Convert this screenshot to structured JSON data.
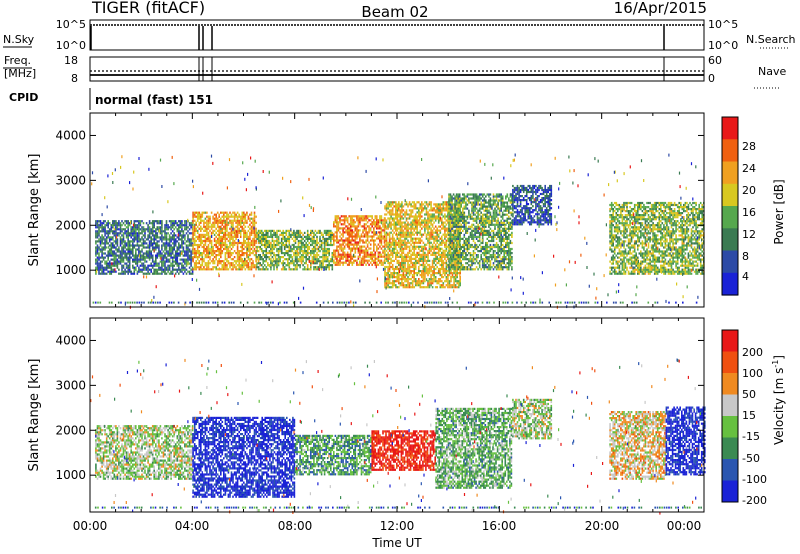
{
  "header": {
    "radar": "TIGER (fitACF)",
    "beam": "Beam 02",
    "date": "16/Apr/2015"
  },
  "noise_panel": {
    "left_label": "N.Sky",
    "right_label": "N.Search",
    "left_ticks": [
      "10^5",
      "10^0"
    ],
    "right_ticks": [
      "10^5",
      "10^0"
    ]
  },
  "freq_panel": {
    "left_label_line1": "Freq.",
    "left_label_line2": "[MHz]",
    "left_ticks": [
      "18",
      "8"
    ],
    "right_label": "Nave",
    "right_ticks": [
      "60",
      "0"
    ]
  },
  "cpid": {
    "label": "CPID",
    "value": "normal (fast) 151"
  },
  "power_panel": {
    "ylabel": "Slant Range [km]",
    "yticks": [
      "4000",
      "3000",
      "2000",
      "1000"
    ],
    "colorbar_label": "Power [dB]",
    "colorbar_ticks": [
      "28",
      "24",
      "20",
      "16",
      "12",
      "8",
      "4"
    ],
    "colors": [
      "#1a22d6",
      "#2c4aa6",
      "#3a7a52",
      "#56a84e",
      "#d8c820",
      "#f0a020",
      "#f06010",
      "#e81818"
    ]
  },
  "velocity_panel": {
    "ylabel": "Slant Range [km]",
    "yticks": [
      "4000",
      "3000",
      "2000",
      "1000"
    ],
    "colorbar_label": "Velocity [m s",
    "colorbar_sup": "-1",
    "colorbar_label_end": "]",
    "colorbar_ticks": [
      "200",
      "100",
      "50",
      "15",
      "-15",
      "-50",
      "-100",
      "-200"
    ],
    "colors": [
      "#1a22d6",
      "#2a56b0",
      "#3a8a52",
      "#66c040",
      "#c8c8c8",
      "#f08a20",
      "#f05010",
      "#e81818"
    ]
  },
  "xaxis": {
    "ticks": [
      "00:00",
      "04:00",
      "08:00",
      "12:00",
      "16:00",
      "20:00",
      "00:00"
    ],
    "label": "Time UT"
  },
  "chart_data": [
    {
      "type": "heatmap",
      "name": "Power",
      "x_range_hours": [
        0,
        24
      ],
      "y_range_km": [
        180,
        4500
      ],
      "color_range": [
        0,
        30
      ],
      "units": "dB",
      "blobs": [
        {
          "t0": 0.2,
          "t1": 4.0,
          "r0": 900,
          "r1": 2100,
          "value": 8
        },
        {
          "t0": 4.0,
          "t1": 6.5,
          "r0": 1000,
          "r1": 2300,
          "value": 20
        },
        {
          "t0": 6.5,
          "t1": 9.5,
          "r0": 1000,
          "r1": 1900,
          "value": 14
        },
        {
          "t0": 9.5,
          "t1": 11.5,
          "r0": 1100,
          "r1": 2200,
          "value": 22
        },
        {
          "t0": 11.5,
          "t1": 14.5,
          "r0": 600,
          "r1": 2500,
          "value": 18
        },
        {
          "t0": 14.0,
          "t1": 16.5,
          "r0": 1000,
          "r1": 2700,
          "value": 12
        },
        {
          "t0": 16.5,
          "t1": 18.0,
          "r0": 2000,
          "r1": 2900,
          "value": 6
        },
        {
          "t0": 20.3,
          "t1": 24.0,
          "r0": 900,
          "r1": 2500,
          "value": 14
        }
      ]
    },
    {
      "type": "heatmap",
      "name": "Velocity",
      "x_range_hours": [
        0,
        24
      ],
      "y_range_km": [
        180,
        4500
      ],
      "color_range": [
        -200,
        200
      ],
      "units": "m s^-1",
      "blobs": [
        {
          "t0": 0.2,
          "t1": 4.0,
          "r0": 900,
          "r1": 2100,
          "value": 0
        },
        {
          "t0": 4.0,
          "t1": 8.0,
          "r0": 500,
          "r1": 2300,
          "value": -180
        },
        {
          "t0": 8.0,
          "t1": 11.0,
          "r0": 1000,
          "r1": 1900,
          "value": -60
        },
        {
          "t0": 11.0,
          "t1": 13.5,
          "r0": 1100,
          "r1": 2000,
          "value": 180
        },
        {
          "t0": 13.5,
          "t1": 16.5,
          "r0": 700,
          "r1": 2500,
          "value": -40
        },
        {
          "t0": 16.5,
          "t1": 18.0,
          "r0": 1800,
          "r1": 2700,
          "value": 0
        },
        {
          "t0": 20.3,
          "t1": 22.5,
          "r0": 900,
          "r1": 2400,
          "value": 40
        },
        {
          "t0": 22.5,
          "t1": 24.0,
          "r0": 1000,
          "r1": 2500,
          "value": -180
        }
      ]
    }
  ]
}
